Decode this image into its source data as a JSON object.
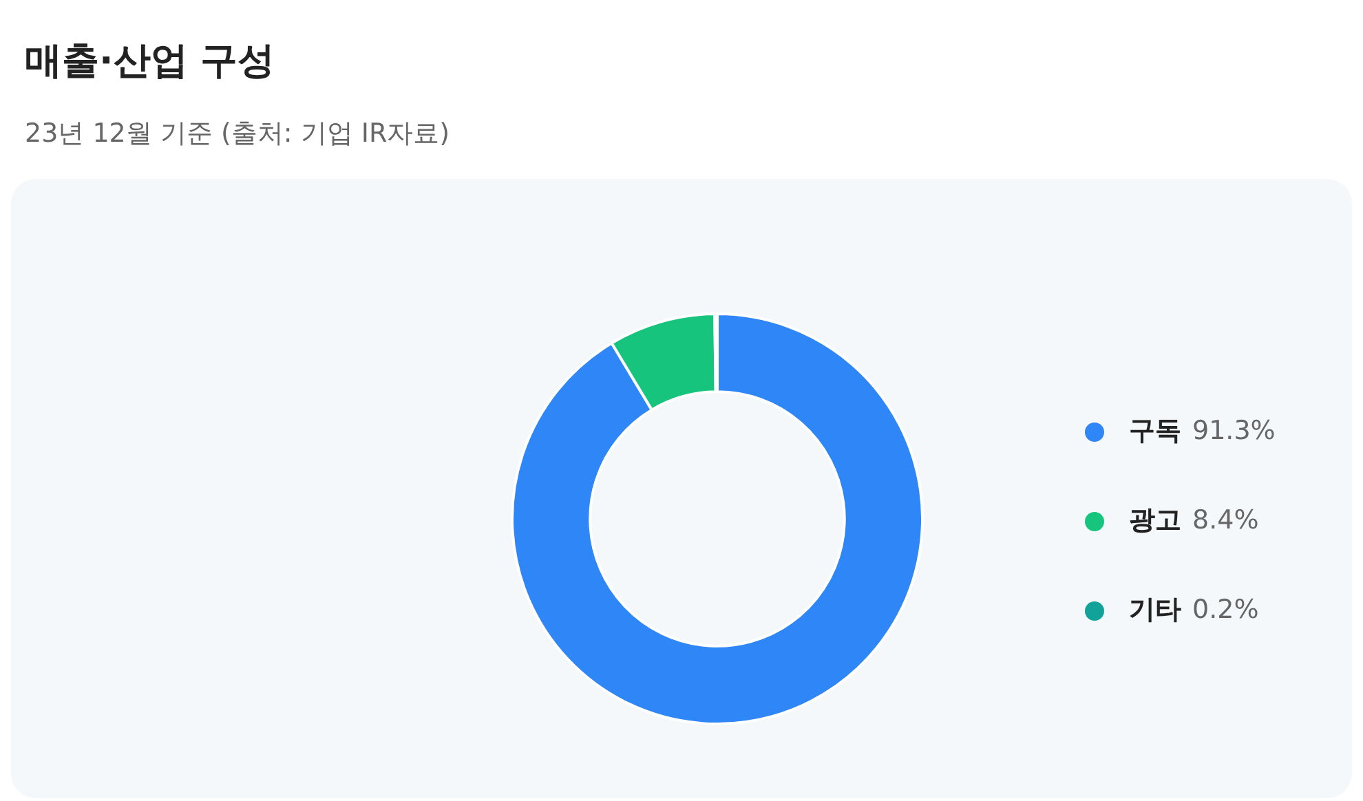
{
  "chart_data": {
    "type": "donut",
    "title": "매출·산업 구성",
    "subtitle": "23년 12월 기준 (출처: 기업 IR자료)",
    "categories": [
      "구독",
      "광고",
      "기타"
    ],
    "values": [
      91.3,
      8.4,
      0.2
    ],
    "colors": [
      "#2f86f6",
      "#17c47d",
      "#13a29a"
    ],
    "value_labels": [
      "91.3%",
      "8.4%",
      "0.2%"
    ],
    "legend": "right"
  }
}
